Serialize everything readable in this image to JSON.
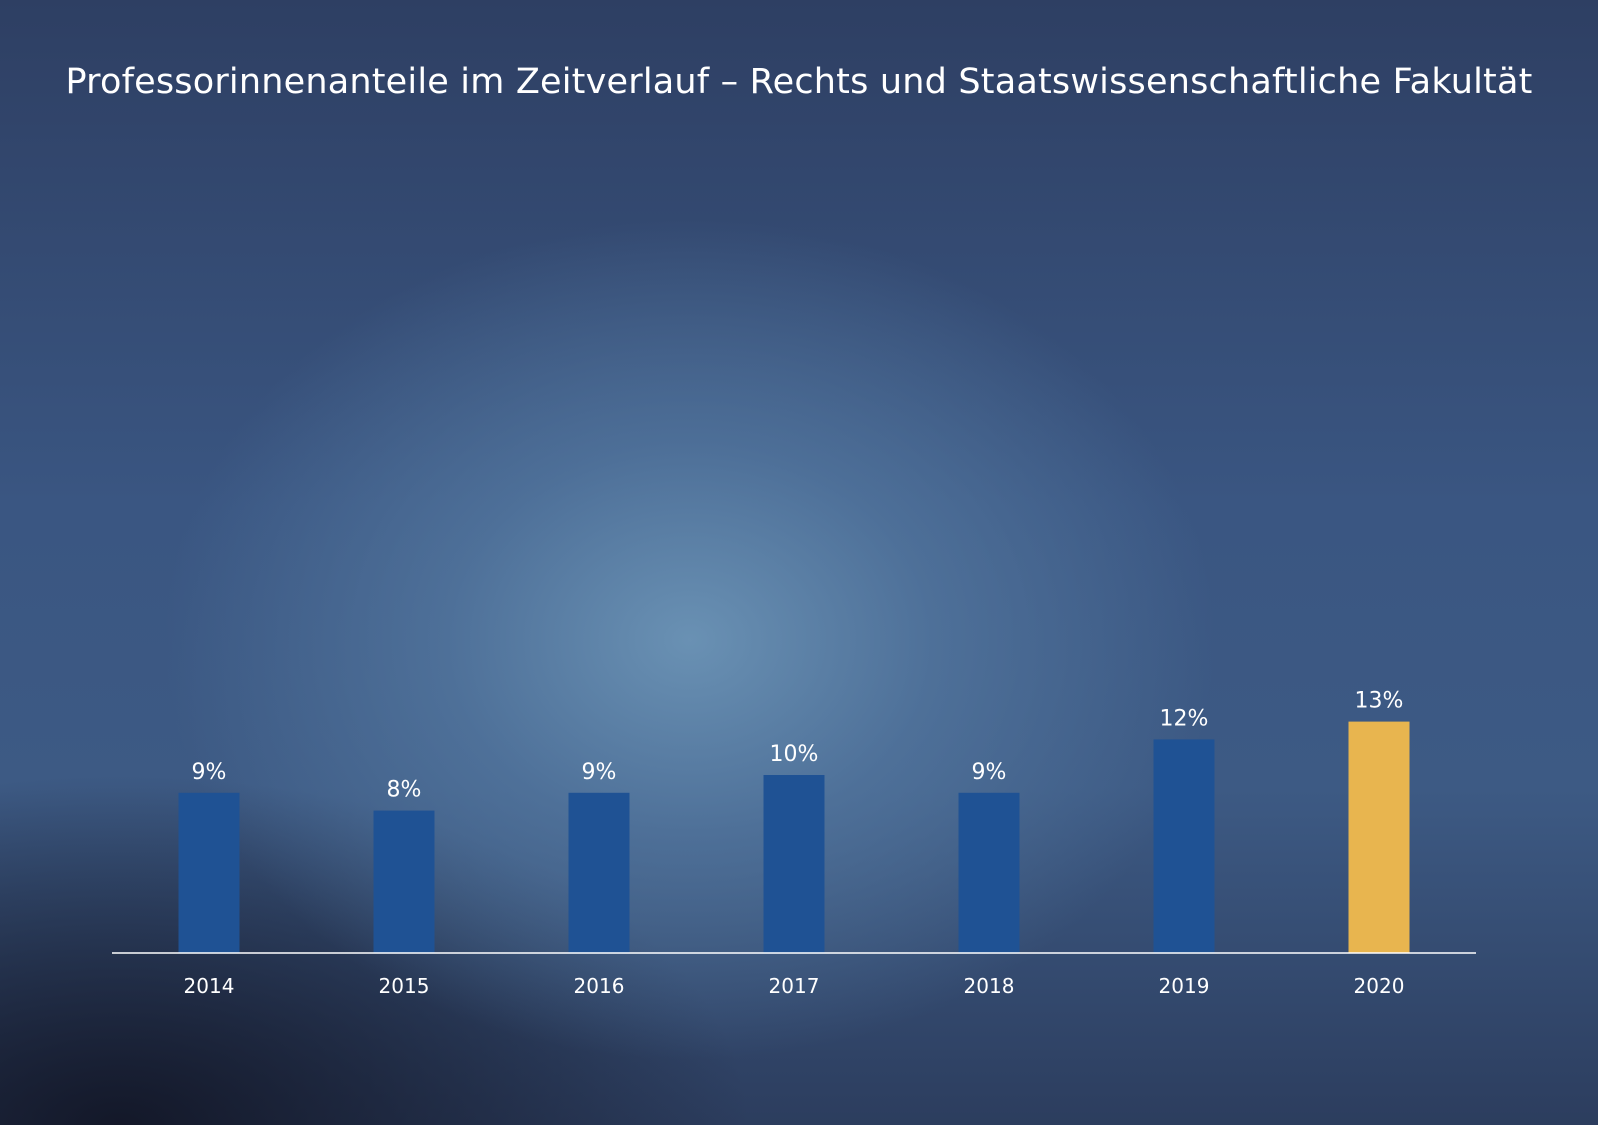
{
  "chart_data": {
    "type": "bar",
    "title": "Professorinnenanteile im Zeitverlauf – Rechts und Staatswissenschaftliche Fakultät",
    "xlabel": "",
    "ylabel": "",
    "categories": [
      "2014",
      "2015",
      "2016",
      "2017",
      "2018",
      "2019",
      "2020"
    ],
    "values": [
      9,
      8,
      9,
      10,
      9,
      12,
      13
    ],
    "data_labels": [
      "9%",
      "8%",
      "9%",
      "10%",
      "9%",
      "12%",
      "13%"
    ],
    "highlight_index": 6,
    "grid": false,
    "ylim": [
      0,
      100
    ],
    "colors": {
      "bar": "#1f5294",
      "highlight": "#e8b54f",
      "axis": "#ffffff",
      "text": "#ffffff"
    }
  }
}
